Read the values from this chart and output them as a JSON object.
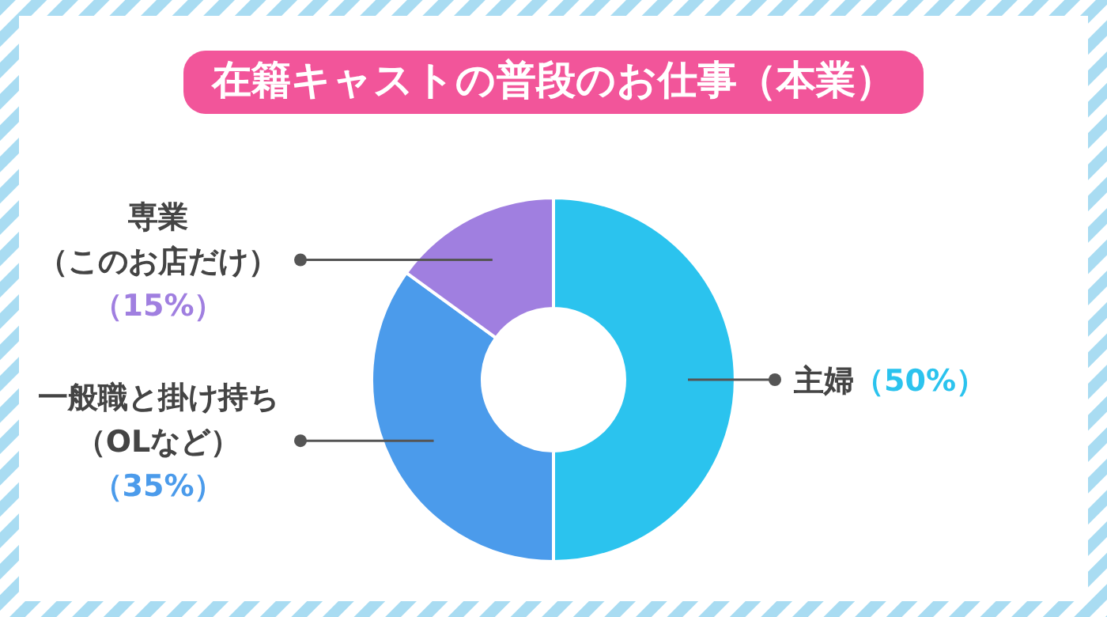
{
  "chart_data": {
    "type": "donut",
    "title": "在籍キャストの普段のお仕事（本業）",
    "categories": [
      "主婦",
      "一般職と掛け持ち（OLなど）",
      "専業（このお店だけ）"
    ],
    "values": [
      50,
      35,
      15
    ],
    "value_labels": [
      "（50%）",
      "（35%）",
      "（15%）"
    ],
    "colors": [
      "#2bc3ee",
      "#4b9beb",
      "#a07fe0"
    ]
  }
}
